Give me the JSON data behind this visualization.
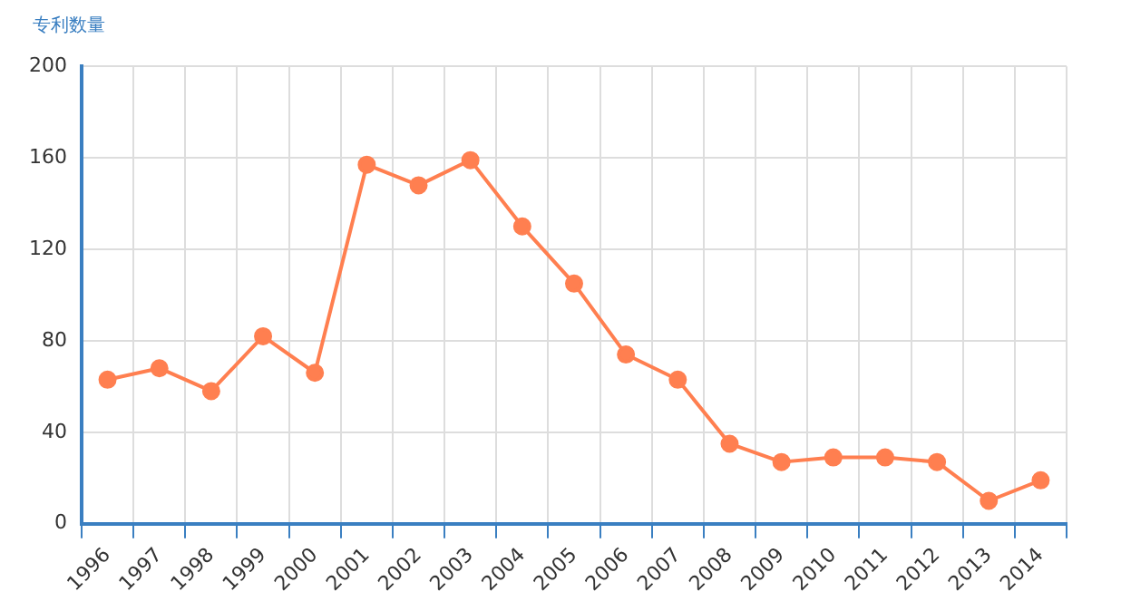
{
  "chart_data": {
    "type": "line",
    "ylabel": "专利数量",
    "categories": [
      "1996",
      "1997",
      "1998",
      "1999",
      "2000",
      "2001",
      "2002",
      "2003",
      "2004",
      "2005",
      "2006",
      "2007",
      "2008",
      "2009",
      "2010",
      "2011",
      "2012",
      "2013",
      "2014"
    ],
    "series": [
      {
        "color": "#ff7f50",
        "values": [
          63,
          68,
          58,
          82,
          66,
          157,
          148,
          159,
          130,
          105,
          74,
          63,
          35,
          27,
          29,
          29,
          27,
          10,
          19
        ]
      }
    ],
    "ylim": [
      0,
      200
    ],
    "yticks": [
      0,
      40,
      80,
      120,
      160,
      200
    ],
    "grid": true,
    "marker": "circle",
    "line_style": "solid",
    "legend": false
  }
}
